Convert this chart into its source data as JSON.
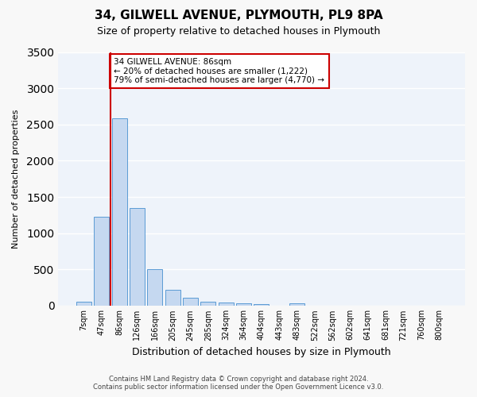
{
  "title": "34, GILWELL AVENUE, PLYMOUTH, PL9 8PA",
  "subtitle": "Size of property relative to detached houses in Plymouth",
  "xlabel": "Distribution of detached houses by size in Plymouth",
  "ylabel": "Number of detached properties",
  "categories": [
    "7sqm",
    "47sqm",
    "86sqm",
    "126sqm",
    "166sqm",
    "205sqm",
    "245sqm",
    "285sqm",
    "324sqm",
    "364sqm",
    "404sqm",
    "443sqm",
    "483sqm",
    "522sqm",
    "562sqm",
    "602sqm",
    "641sqm",
    "681sqm",
    "721sqm",
    "760sqm",
    "800sqm"
  ],
  "values": [
    50,
    1230,
    2590,
    1350,
    500,
    215,
    110,
    50,
    45,
    30,
    20,
    5,
    30,
    0,
    0,
    0,
    0,
    0,
    0,
    0,
    0
  ],
  "bar_color": "#c5d8f0",
  "bar_edge_color": "#5b9bd5",
  "vline_x_index": 2,
  "vline_color": "#cc0000",
  "annotation_text": "34 GILWELL AVENUE: 86sqm\n← 20% of detached houses are smaller (1,222)\n79% of semi-detached houses are larger (4,770) →",
  "annotation_box_color": "#ffffff",
  "annotation_box_edge": "#cc0000",
  "ylim": [
    0,
    3500
  ],
  "yticks": [
    0,
    500,
    1000,
    1500,
    2000,
    2500,
    3000,
    3500
  ],
  "bg_color": "#eef3fa",
  "grid_color": "#ffffff",
  "footer_line1": "Contains HM Land Registry data © Crown copyright and database right 2024.",
  "footer_line2": "Contains public sector information licensed under the Open Government Licence v3.0."
}
